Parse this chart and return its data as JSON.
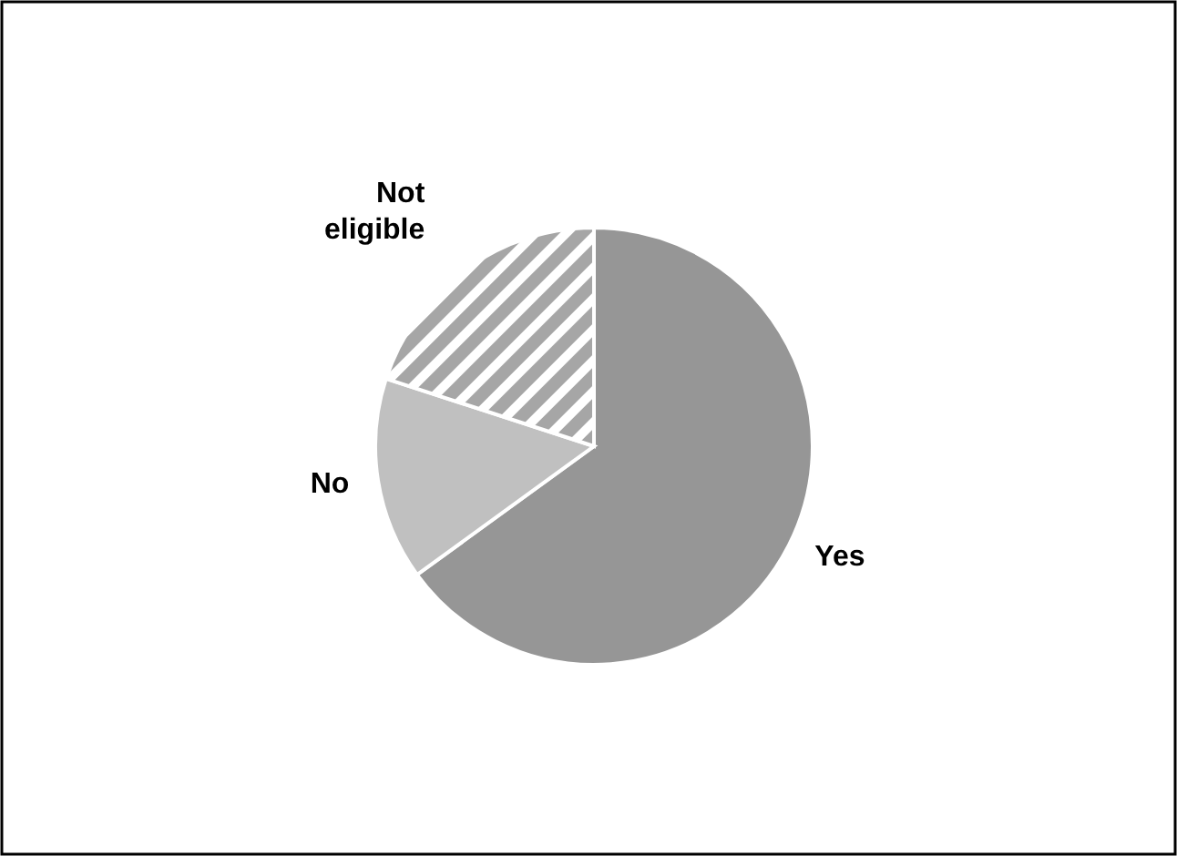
{
  "chart_data": {
    "type": "pie",
    "categories": [
      "Yes",
      "No",
      "Not eligible"
    ],
    "values": [
      65,
      15,
      20
    ],
    "colors": [
      "#969696",
      "#c0c0c0",
      "#a6a6a6"
    ]
  }
}
